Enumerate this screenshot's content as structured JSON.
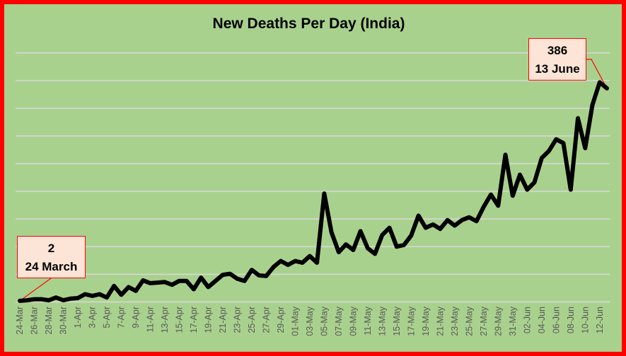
{
  "chart_data": {
    "type": "line",
    "title": "New Deaths Per Day (India)",
    "xlabel": "",
    "ylabel": "",
    "ylim": [
      0,
      450
    ],
    "y_grid_step": 50,
    "grid": true,
    "y_tick_labels_shown": false,
    "line_color": "#000000",
    "background_color": "#a9d18e",
    "border_color": "#ff0000",
    "categories": [
      "24-Mar",
      "25-Mar",
      "26-Mar",
      "27-Mar",
      "28-Mar",
      "29-Mar",
      "30-Mar",
      "31-Mar",
      "1-Apr",
      "2-Apr",
      "3-Apr",
      "4-Apr",
      "5-Apr",
      "6-Apr",
      "7-Apr",
      "8-Apr",
      "9-Apr",
      "10-Apr",
      "11-Apr",
      "12-Apr",
      "13-Apr",
      "14-Apr",
      "15-Apr",
      "16-Apr",
      "17-Apr",
      "18-Apr",
      "19-Apr",
      "20-Apr",
      "21-Apr",
      "22-Apr",
      "23-Apr",
      "24-Apr",
      "25-Apr",
      "26-Apr",
      "27-Apr",
      "28-Apr",
      "29-Apr",
      "30-Apr",
      "01-May",
      "02-May",
      "03-May",
      "04-May",
      "05-May",
      "06-May",
      "07-May",
      "08-May",
      "09-May",
      "10-May",
      "11-May",
      "12-May",
      "13-May",
      "14-May",
      "15-May",
      "16-May",
      "17-May",
      "18-May",
      "19-May",
      "20-May",
      "21-May",
      "22-May",
      "23-May",
      "24-May",
      "25-May",
      "26-May",
      "27-May",
      "28-May",
      "29-May",
      "30-May",
      "31-May",
      "01-Jun",
      "02-Jun",
      "03-Jun",
      "04-Jun",
      "05-Jun",
      "06-Jun",
      "07-Jun",
      "08-Jun",
      "09-Jun",
      "10-Jun",
      "11-Jun",
      "12-Jun",
      "13-Jun"
    ],
    "tick_labels": [
      "24-Mar",
      "26-Mar",
      "28-Mar",
      "30-Mar",
      "1-Apr",
      "3-Apr",
      "5-Apr",
      "7-Apr",
      "9-Apr",
      "11-Apr",
      "13-Apr",
      "15-Apr",
      "17-Apr",
      "19-Apr",
      "21-Apr",
      "23-Apr",
      "25-Apr",
      "27-Apr",
      "29-Apr",
      "01-May",
      "03-May",
      "05-May",
      "07-May",
      "09-May",
      "11-May",
      "13-May",
      "15-May",
      "17-May",
      "19-May",
      "21-May",
      "23-May",
      "25-May",
      "27-May",
      "29-May",
      "31-May",
      "02-Jun",
      "04-Jun",
      "06-Jun",
      "08-Jun",
      "10-Jun",
      "12-Jun"
    ],
    "values": [
      2,
      3,
      5,
      5,
      3,
      8,
      3,
      6,
      7,
      14,
      11,
      14,
      8,
      29,
      13,
      27,
      20,
      39,
      34,
      35,
      36,
      31,
      38,
      38,
      23,
      44,
      27,
      38,
      49,
      51,
      42,
      38,
      58,
      48,
      47,
      63,
      74,
      67,
      74,
      71,
      83,
      71,
      196,
      126,
      90,
      104,
      94,
      128,
      97,
      87,
      121,
      134,
      100,
      103,
      120,
      156,
      134,
      140,
      132,
      148,
      138,
      148,
      153,
      146,
      172,
      194,
      174,
      266,
      192,
      230,
      203,
      216,
      260,
      273,
      294,
      287,
      203,
      332,
      278,
      356,
      397,
      386
    ],
    "annotations": [
      {
        "value": "2",
        "label": "24 March"
      },
      {
        "value": "386",
        "label": "13 June"
      }
    ]
  }
}
